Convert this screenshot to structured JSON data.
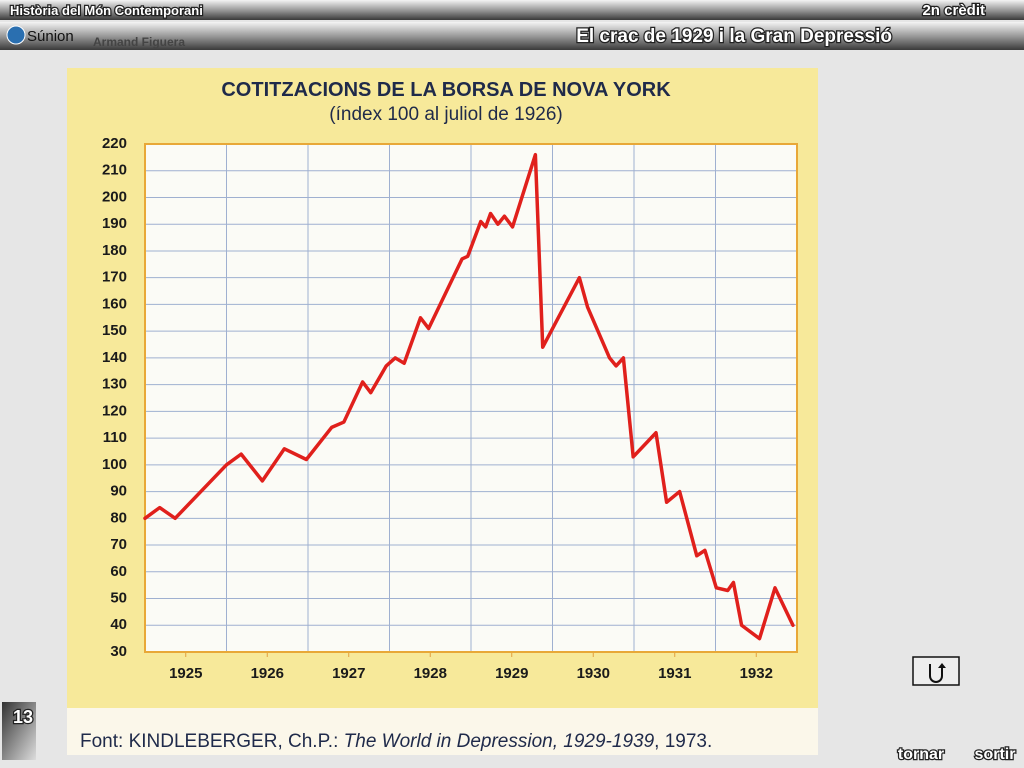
{
  "header": {
    "course": "Història del Món Contemporani",
    "credit": "2n crèdit",
    "logo": "Súnion",
    "author": "Armand Figuera",
    "slide_title": "El crac de 1929 i la Gran Depressió"
  },
  "chart_data": {
    "type": "line",
    "title": "COTITZACIONS DE LA BORSA DE NOVA YORK",
    "subtitle": "(índex 100 al juliol de 1926)",
    "color": "#e0201c",
    "x": [
      1925.0,
      1925.18,
      1925.37,
      1926.0,
      1926.18,
      1926.44,
      1926.71,
      1926.98,
      1927.29,
      1927.44,
      1927.67,
      1927.77,
      1927.96,
      1928.07,
      1928.18,
      1928.38,
      1928.48,
      1928.89,
      1928.96,
      1929.12,
      1929.18,
      1929.24,
      1929.33,
      1929.41,
      1929.51,
      1929.79,
      1929.88,
      1930.33,
      1930.43,
      1930.7,
      1930.78,
      1930.87,
      1930.99,
      1931.27,
      1931.4,
      1931.56,
      1931.77,
      1931.87,
      1932.01,
      1932.15,
      1932.22,
      1932.32,
      1932.54,
      1932.73,
      1932.95
    ],
    "values": [
      80,
      84,
      80,
      100,
      104,
      94,
      106,
      102,
      114,
      116,
      131,
      127,
      137,
      140,
      138,
      155,
      151,
      177,
      178,
      191,
      189,
      194,
      190,
      193,
      189,
      216,
      144,
      170,
      159,
      140,
      137,
      140,
      103,
      112,
      86,
      90,
      66,
      68,
      54,
      53,
      56,
      40,
      35,
      54,
      40
    ],
    "xlim": [
      1925,
      1933
    ],
    "xticks": [
      {
        "value": 1925.5,
        "label": "1925"
      },
      {
        "value": 1926.5,
        "label": "1926"
      },
      {
        "value": 1927.5,
        "label": "1927"
      },
      {
        "value": 1928.5,
        "label": "1928"
      },
      {
        "value": 1929.5,
        "label": "1929"
      },
      {
        "value": 1930.5,
        "label": "1930"
      },
      {
        "value": 1931.5,
        "label": "1931"
      },
      {
        "value": 1932.5,
        "label": "1932"
      }
    ],
    "ylim": [
      30,
      220
    ],
    "yticks": [
      30,
      40,
      50,
      60,
      70,
      80,
      90,
      100,
      110,
      120,
      130,
      140,
      150,
      160,
      170,
      180,
      190,
      200,
      210,
      220
    ],
    "grid": true,
    "source": [
      "Font: KINDLEBERGER, Ch.P.: ",
      "The World in Depression, 1929-1939",
      ", 1973."
    ]
  },
  "footer": {
    "page": "13",
    "back": "tornar",
    "exit": "sortir"
  }
}
